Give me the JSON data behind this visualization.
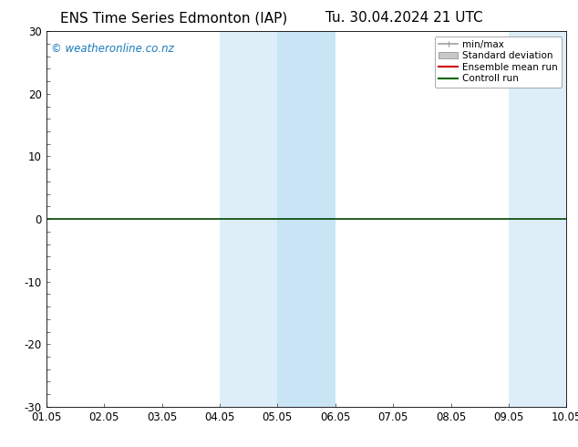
{
  "title_left": "ENS Time Series Edmonton (IAP)",
  "title_right": "Tu. 30.04.2024 21 UTC",
  "xlabel_ticks": [
    "01.05",
    "02.05",
    "03.05",
    "04.05",
    "05.05",
    "06.05",
    "07.05",
    "08.05",
    "09.05",
    "10.05"
  ],
  "xlim": [
    0,
    9
  ],
  "ylim": [
    -30,
    30
  ],
  "yticks": [
    -30,
    -20,
    -10,
    0,
    10,
    20,
    30
  ],
  "background_color": "#ffffff",
  "plot_bg_color": "#ffffff",
  "shaded_regions": [
    {
      "x_start": 3.0,
      "x_end": 4.0,
      "color": "#ddeef8"
    },
    {
      "x_start": 4.0,
      "x_end": 5.0,
      "color": "#c8e4f5"
    },
    {
      "x_start": 8.0,
      "x_end": 9.0,
      "color": "#ddeef8"
    }
  ],
  "watermark_text": "© weatheronline.co.nz",
  "watermark_color": "#1a7abf",
  "legend_entries": [
    {
      "label": "min/max",
      "color": "#a0a0a0",
      "style": "hline"
    },
    {
      "label": "Standard deviation",
      "color": "#c8c8c8",
      "style": "rect"
    },
    {
      "label": "Ensemble mean run",
      "color": "#cc0000",
      "style": "line"
    },
    {
      "label": "Controll run",
      "color": "#006600",
      "style": "line"
    }
  ],
  "zero_line_color": "#004400",
  "axis_color": "#000000",
  "tick_label_fontsize": 8.5,
  "title_fontsize": 11,
  "watermark_fontsize": 8.5,
  "legend_fontsize": 7.5
}
